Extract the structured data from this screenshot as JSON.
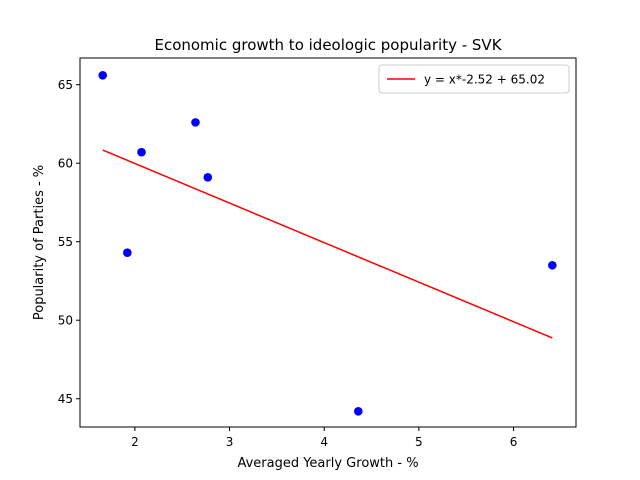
{
  "chart_data": {
    "type": "scatter",
    "title": "Economic growth to ideologic popularity - SVK",
    "xlabel": "Averaged Yearly Growth - %",
    "ylabel": "Popularity of Parties - %",
    "xlim": [
      1.42,
      6.66
    ],
    "ylim": [
      43.2,
      66.7
    ],
    "xticks": [
      2,
      3,
      4,
      5,
      6
    ],
    "yticks": [
      45,
      50,
      55,
      60,
      65
    ],
    "grid": false,
    "legend_position": "top-right",
    "series": [
      {
        "kind": "points",
        "color": "#0000ff",
        "x": [
          1.66,
          1.92,
          2.07,
          2.64,
          2.77,
          4.36,
          6.41
        ],
        "y": [
          65.6,
          54.3,
          60.7,
          62.6,
          59.1,
          44.2,
          53.5
        ]
      },
      {
        "kind": "line",
        "name": "y = x*-2.52 + 65.02",
        "color": "#ff0000",
        "x": [
          1.66,
          6.41
        ],
        "y": [
          60.84,
          48.87
        ]
      }
    ]
  }
}
